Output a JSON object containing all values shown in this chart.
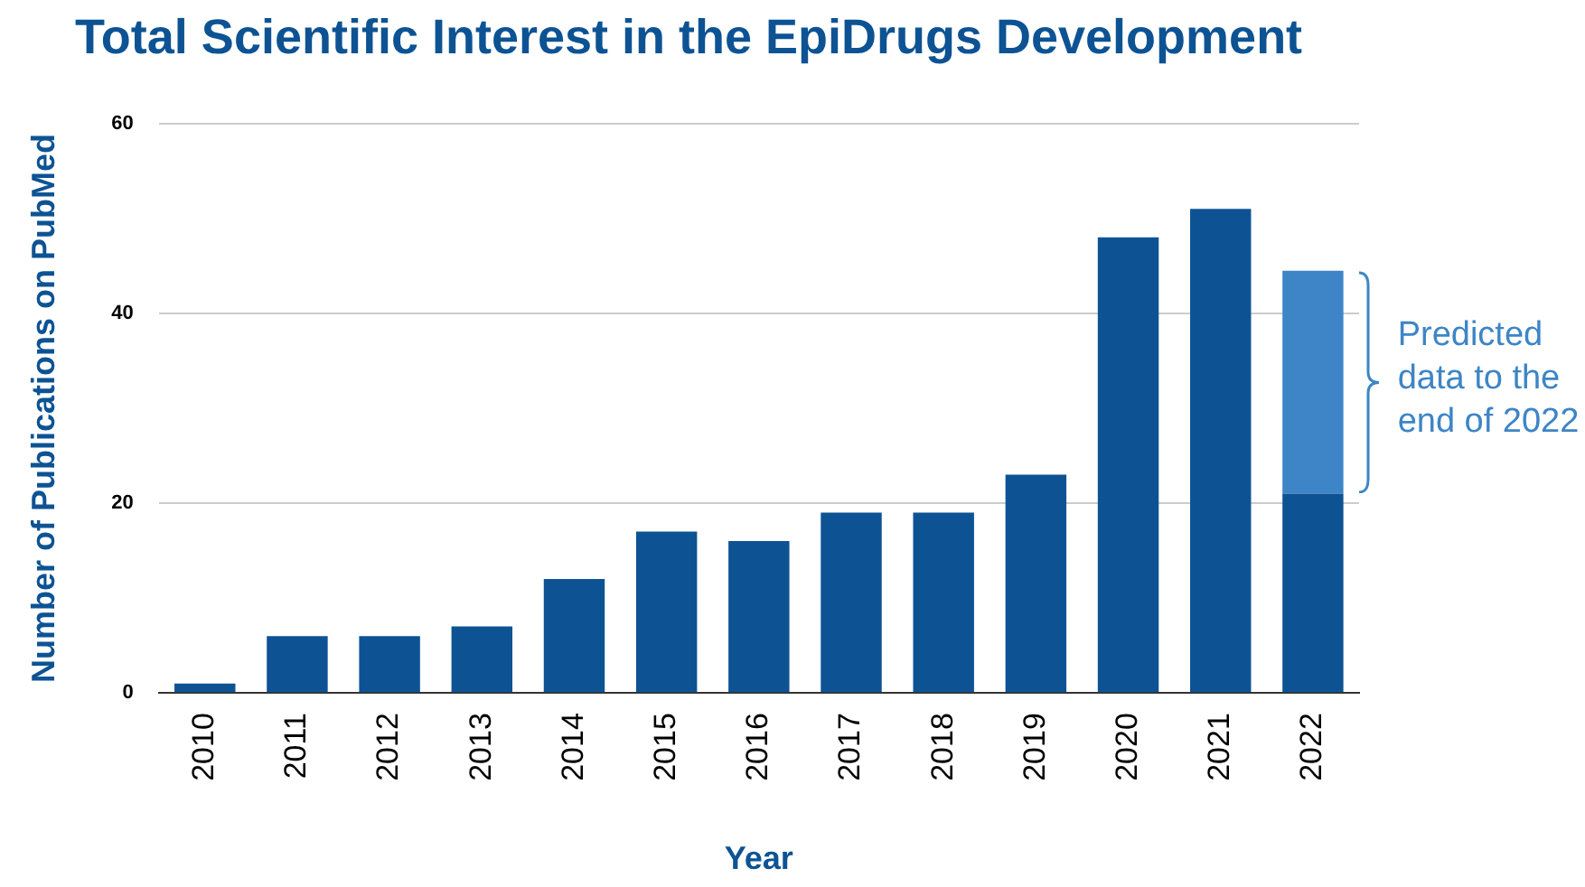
{
  "chart_data": {
    "type": "bar",
    "title": "Total Scientific Interest in the EpiDrugs Development",
    "xlabel": "Year",
    "ylabel": "Number of Publications on PubMed",
    "categories": [
      "2010",
      "2011",
      "2012",
      "2013",
      "2014",
      "2015",
      "2016",
      "2017",
      "2018",
      "2019",
      "2020",
      "2021",
      "2022"
    ],
    "stacked": true,
    "series": [
      {
        "color": "#0d5394",
        "values": [
          1,
          6,
          6,
          7,
          12,
          17,
          16,
          19,
          19,
          23,
          48,
          51,
          21
        ]
      },
      {
        "color": "#3d85c6",
        "values": [
          null,
          null,
          null,
          null,
          null,
          null,
          null,
          null,
          null,
          null,
          null,
          null,
          23.5
        ]
      }
    ],
    "ylim": [
      0,
      60
    ],
    "yticks": [
      0,
      20,
      40,
      60
    ],
    "grid": "y",
    "legend": false,
    "annotations": [
      "Predicted data to the end of 2022"
    ]
  }
}
